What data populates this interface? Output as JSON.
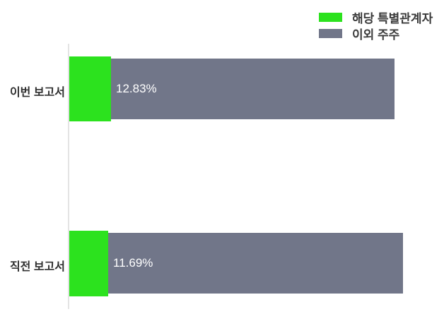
{
  "chart_data": {
    "type": "bar",
    "orientation": "horizontal",
    "stacked": true,
    "title": "",
    "xlabel": "",
    "ylabel": "",
    "grid": false,
    "xlim": [
      0,
      100
    ],
    "legend_position": "top-right",
    "categories": [
      "이번 보고서",
      "직전 보고서"
    ],
    "series": [
      {
        "name": "해당 특별관계자",
        "values": [
          12.83,
          11.69
        ]
      },
      {
        "name": "이외 주주",
        "values": [
          87.17,
          88.31
        ]
      }
    ],
    "value_labels": [
      "12.83%",
      "11.69%"
    ]
  },
  "legend": {
    "items": [
      {
        "label": "해당 특별관계자",
        "color_key": "series1"
      },
      {
        "label": "이외 주주",
        "color_key": "series2"
      }
    ]
  },
  "rows": [
    {
      "label": "이번 보고서",
      "pct": "12.83%"
    },
    {
      "label": "직전 보고서",
      "pct": "11.69%"
    }
  ],
  "colors": {
    "series1": "#2ce21e",
    "series2": "#717689",
    "axis": "#e4e4e4",
    "category_text": "#2f2f2f",
    "value_text": "#ffffff"
  }
}
